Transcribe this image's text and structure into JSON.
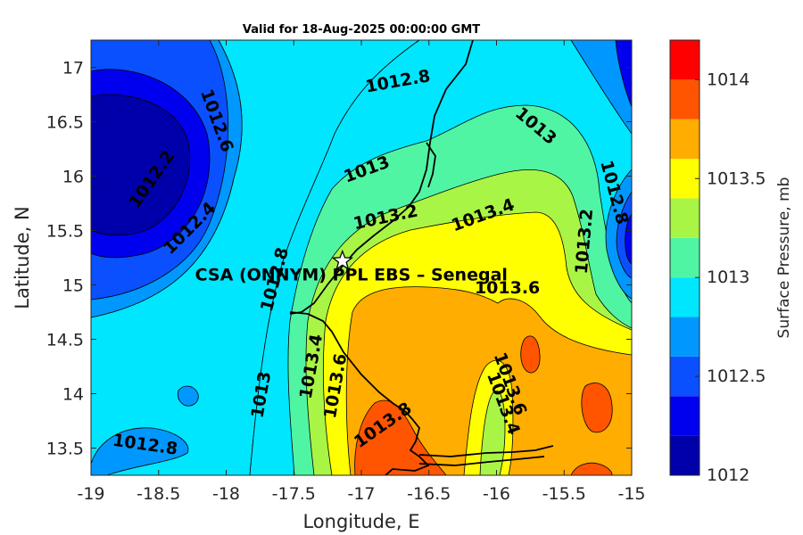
{
  "chart_data": {
    "type": "contour",
    "title": "Valid for 18-Aug-2025 00:00:00 GMT",
    "xlabel": "Longitude, E",
    "ylabel": "Latitude, N",
    "xlim": [
      -19,
      -15
    ],
    "ylim": [
      13.25,
      17.25
    ],
    "x_ticks": [
      "-19",
      "-18.5",
      "-18",
      "-17.5",
      "-17",
      "-16.5",
      "-16",
      "-15.5",
      "-15"
    ],
    "y_ticks": [
      "13.5",
      "14",
      "14.5",
      "15",
      "15.5",
      "16",
      "16.5",
      "17"
    ],
    "colorbar": {
      "label": "Surface Pressure, mb",
      "range": [
        1012,
        1014.2
      ],
      "ticks": [
        "1012",
        "1012.5",
        "1013",
        "1013.5",
        "1014"
      ],
      "level_step": 0.2,
      "colors": [
        "#0000aa",
        "#0000ee",
        "#0a50ff",
        "#0098ff",
        "#00e6ff",
        "#50f5a4",
        "#a9f545",
        "#ffff00",
        "#ffad00",
        "#ff5500",
        "#ff0000",
        "#b00000"
      ]
    },
    "contour_labels": [
      {
        "text": "1012.8",
        "lon": -16.73,
        "lat": 16.87,
        "angle": -10
      },
      {
        "text": "1012.6",
        "lon": -18.07,
        "lat": 16.51,
        "angle": 70
      },
      {
        "text": "1012.2",
        "lon": -18.55,
        "lat": 15.97,
        "angle": -55
      },
      {
        "text": "1012.4",
        "lon": -18.27,
        "lat": 15.52,
        "angle": -45
      },
      {
        "text": "1013",
        "lon": -15.71,
        "lat": 16.46,
        "angle": 40
      },
      {
        "text": "1012.8",
        "lon": -15.13,
        "lat": 15.85,
        "angle": 75
      },
      {
        "text": "1013",
        "lon": -16.96,
        "lat": 16.06,
        "angle": -20
      },
      {
        "text": "1013.2",
        "lon": -16.82,
        "lat": 15.62,
        "angle": -12
      },
      {
        "text": "1013.4",
        "lon": -16.1,
        "lat": 15.64,
        "angle": -20
      },
      {
        "text": "1013.2",
        "lon": -15.35,
        "lat": 15.4,
        "angle": -85
      },
      {
        "text": "1012.8",
        "lon": -17.64,
        "lat": 15.05,
        "angle": -75
      },
      {
        "text": "1013.6",
        "lon": -15.92,
        "lat": 14.97,
        "angle": 0
      },
      {
        "text": "1013",
        "lon": -17.74,
        "lat": 13.99,
        "angle": -80
      },
      {
        "text": "1013.4",
        "lon": -17.37,
        "lat": 14.25,
        "angle": -80
      },
      {
        "text": "1013.6",
        "lon": -17.19,
        "lat": 14.07,
        "angle": -80
      },
      {
        "text": "1013.8",
        "lon": -16.84,
        "lat": 13.71,
        "angle": -35
      },
      {
        "text": "1013.6",
        "lon": -15.9,
        "lat": 14.09,
        "angle": 70
      },
      {
        "text": "1013.4",
        "lon": -15.95,
        "lat": 13.91,
        "angle": 70
      },
      {
        "text": "1012.8",
        "lon": -18.6,
        "lat": 13.53,
        "angle": 8
      }
    ],
    "annotation": {
      "text": "CSA (ONNYM) PPL EBS  – Senegal",
      "marker": "star",
      "lon": -17.14,
      "lat": 15.22
    }
  }
}
